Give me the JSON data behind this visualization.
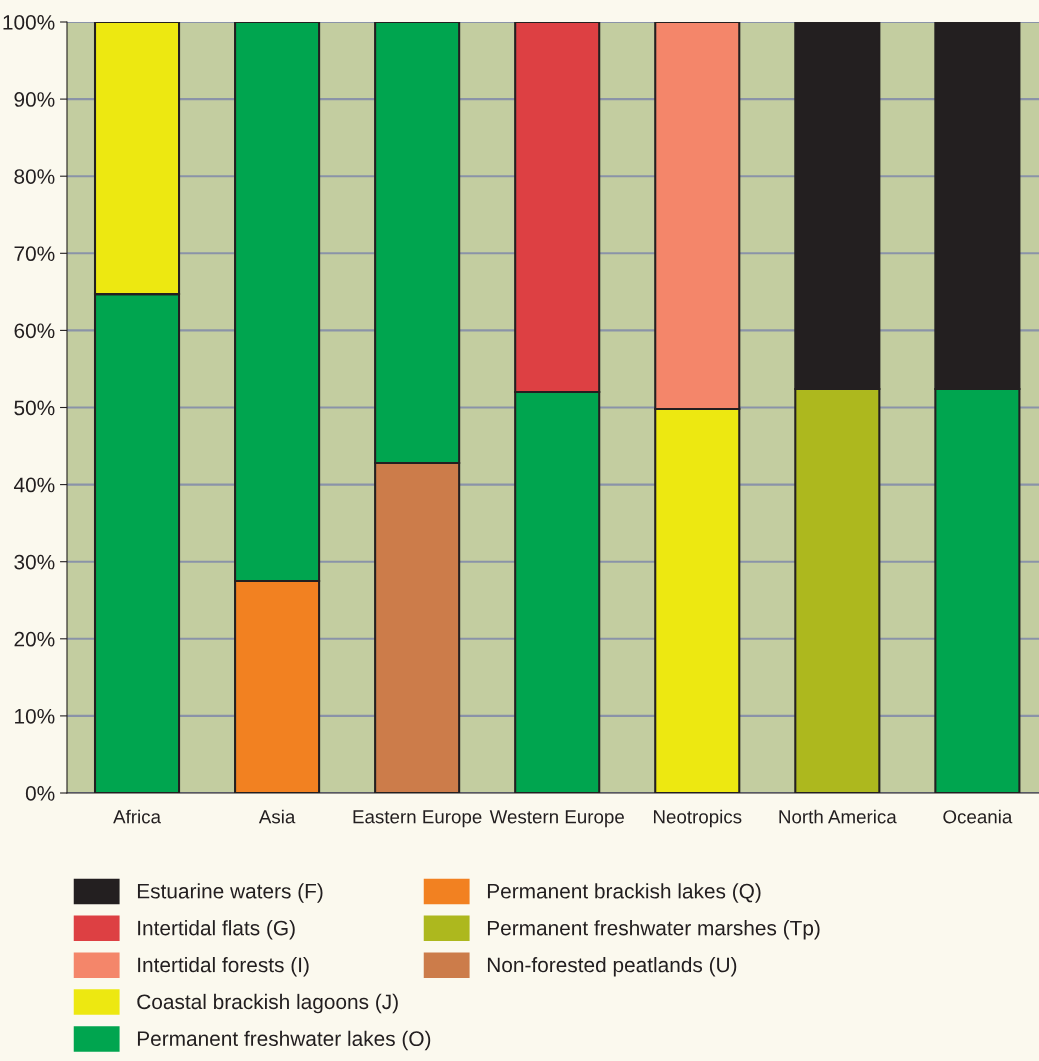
{
  "chart_data": {
    "type": "bar",
    "stacked": true,
    "categories": [
      "Africa",
      "Asia",
      "Eastern Europe",
      "Western Europe",
      "Neotropics",
      "North America",
      "Oceania"
    ],
    "ylim": [
      0,
      100
    ],
    "yticks": [
      {
        "value": 0,
        "label": "0%"
      },
      {
        "value": 10,
        "label": "10%"
      },
      {
        "value": 20,
        "label": "20%"
      },
      {
        "value": 30,
        "label": "30%"
      },
      {
        "value": 40,
        "label": "40%"
      },
      {
        "value": 50,
        "label": "50%"
      },
      {
        "value": 60,
        "label": "60%"
      },
      {
        "value": 70,
        "label": "70%"
      },
      {
        "value": 80,
        "label": "80%"
      },
      {
        "value": 90,
        "label": "90%"
      },
      {
        "value": 100,
        "label": "100%"
      }
    ],
    "grid": "y",
    "legend": "bottom",
    "series": [
      {
        "name": "Non-forested peatlands (U)",
        "color": "#cc7c4a",
        "values": [
          null,
          null,
          42.8,
          null,
          null,
          null,
          null
        ]
      },
      {
        "name": "Permanent freshwater marshes (Tp)",
        "color": "#adb81e",
        "values": [
          null,
          null,
          null,
          null,
          null,
          52.4,
          null
        ]
      },
      {
        "name": "Permanent brackish lakes (Q)",
        "color": "#f28121",
        "values": [
          null,
          27.5,
          null,
          null,
          null,
          null,
          null
        ]
      },
      {
        "name": "Permanent freshwater lakes (O)",
        "color": "#00a54f",
        "values": [
          64.7,
          72.5,
          57.2,
          52.0,
          null,
          null,
          52.4
        ]
      },
      {
        "name": "Coastal brackish lagoons (J)",
        "color": "#ede811",
        "values": [
          35.3,
          null,
          null,
          null,
          49.8,
          null,
          null
        ]
      },
      {
        "name": "Intertidal forests (I)",
        "color": "#f4866a",
        "values": [
          null,
          null,
          null,
          null,
          50.2,
          null,
          null
        ]
      },
      {
        "name": "Intertidal flats (G)",
        "color": "#dd4043",
        "values": [
          null,
          null,
          null,
          48.0,
          null,
          null,
          null
        ]
      },
      {
        "name": "Estuarine waters (F)",
        "color": "#231f20",
        "values": [
          null,
          null,
          null,
          null,
          null,
          47.6,
          47.6
        ]
      }
    ]
  }
}
